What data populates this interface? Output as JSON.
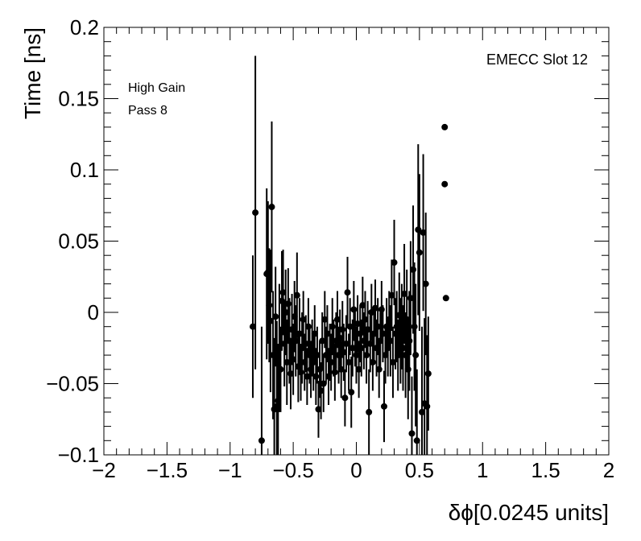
{
  "chart_data": {
    "type": "scatter",
    "xlabel": "δϕ[0.0245 units]",
    "ylabel": "Time [ns]",
    "xlim": [
      -2,
      2
    ],
    "ylim": [
      -0.1,
      0.2
    ],
    "x_ticks": [
      -2,
      -1.5,
      -1,
      -0.5,
      0,
      0.5,
      1,
      1.5,
      2
    ],
    "x_tick_labels": [
      "−2",
      "−1.5",
      "−1",
      "−0.5",
      "0",
      "0.5",
      "1",
      "1.5",
      "2"
    ],
    "y_ticks": [
      -0.1,
      -0.05,
      0,
      0.05,
      0.1,
      0.15,
      0.2
    ],
    "y_tick_labels": [
      "−0.1",
      "−0.05",
      "0",
      "0.05",
      "0.1",
      "0.15",
      "0.2"
    ],
    "annotations": {
      "top_right": "EMECC Slot 12",
      "top_left_line1": "High Gain",
      "top_left_line2": "Pass 8"
    },
    "grid": false,
    "series": [
      {
        "points": [
          [
            -0.82,
            -0.01,
            0.05
          ],
          [
            -0.8,
            0.07,
            0.11
          ],
          [
            -0.75,
            -0.09,
            0.08
          ],
          [
            -0.71,
            0.027,
            0.06
          ],
          [
            -0.7,
            0.028,
            0.05
          ],
          [
            -0.69,
            0.005,
            0.04
          ],
          [
            -0.68,
            -0.006,
            0.05
          ],
          [
            -0.67,
            0.074,
            0.06
          ],
          [
            -0.66,
            -0.03,
            0.045
          ],
          [
            -0.65,
            -0.068,
            0.05
          ],
          [
            -0.64,
            -0.003,
            0.035
          ],
          [
            -0.63,
            -0.066,
            0.06
          ],
          [
            -0.62,
            -0.062,
            0.04
          ],
          [
            -0.61,
            -0.025,
            0.045
          ],
          [
            -0.6,
            -0.04,
            0.03
          ],
          [
            -0.59,
            0.008,
            0.035
          ],
          [
            -0.58,
            0.014,
            0.03
          ],
          [
            -0.57,
            -0.022,
            0.03
          ],
          [
            -0.56,
            0.0,
            0.03
          ],
          [
            -0.55,
            -0.035,
            0.03
          ],
          [
            -0.54,
            0.006,
            0.025
          ],
          [
            -0.53,
            -0.02,
            0.03
          ],
          [
            -0.52,
            -0.043,
            0.025
          ],
          [
            -0.51,
            -0.012,
            0.025
          ],
          [
            -0.5,
            -0.033,
            0.025
          ],
          [
            -0.49,
            -0.003,
            0.025
          ],
          [
            -0.48,
            -0.02,
            0.025
          ],
          [
            -0.47,
            0.012,
            0.03
          ],
          [
            -0.46,
            -0.038,
            0.025
          ],
          [
            -0.45,
            -0.015,
            0.025
          ],
          [
            -0.44,
            -0.042,
            0.02
          ],
          [
            -0.43,
            -0.025,
            0.025
          ],
          [
            -0.42,
            -0.005,
            0.02
          ],
          [
            -0.41,
            -0.035,
            0.02
          ],
          [
            -0.4,
            -0.022,
            0.02
          ],
          [
            -0.39,
            -0.045,
            0.02
          ],
          [
            -0.38,
            -0.01,
            0.02
          ],
          [
            -0.37,
            -0.03,
            0.02
          ],
          [
            -0.36,
            -0.04,
            0.02
          ],
          [
            -0.35,
            -0.025,
            0.02
          ],
          [
            -0.34,
            -0.035,
            0.02
          ],
          [
            -0.33,
            -0.015,
            0.02
          ],
          [
            -0.32,
            -0.045,
            0.02
          ],
          [
            -0.31,
            -0.03,
            0.02
          ],
          [
            -0.3,
            -0.068,
            0.02
          ],
          [
            -0.29,
            -0.04,
            0.02
          ],
          [
            -0.28,
            -0.055,
            0.02
          ],
          [
            -0.27,
            -0.02,
            0.02
          ],
          [
            -0.26,
            -0.05,
            0.02
          ],
          [
            -0.25,
            -0.005,
            0.02
          ],
          [
            -0.24,
            -0.03,
            0.02
          ],
          [
            -0.23,
            -0.015,
            0.02
          ],
          [
            -0.22,
            -0.045,
            0.02
          ],
          [
            -0.21,
            -0.028,
            0.02
          ],
          [
            -0.2,
            -0.035,
            0.02
          ],
          [
            -0.19,
            -0.01,
            0.02
          ],
          [
            -0.18,
            -0.025,
            0.02
          ],
          [
            -0.17,
            -0.042,
            0.02
          ],
          [
            -0.16,
            -0.02,
            0.02
          ],
          [
            -0.15,
            -0.005,
            0.02
          ],
          [
            -0.14,
            -0.03,
            0.02
          ],
          [
            -0.13,
            -0.018,
            0.02
          ],
          [
            -0.12,
            -0.04,
            0.02
          ],
          [
            -0.11,
            -0.012,
            0.02
          ],
          [
            -0.1,
            -0.028,
            0.02
          ],
          [
            -0.09,
            -0.06,
            0.02
          ],
          [
            -0.08,
            -0.022,
            0.02
          ],
          [
            -0.07,
            0.014,
            0.025
          ],
          [
            -0.06,
            -0.035,
            0.02
          ],
          [
            -0.05,
            -0.01,
            0.02
          ],
          [
            -0.04,
            -0.056,
            0.025
          ],
          [
            -0.03,
            -0.025,
            0.02
          ],
          [
            -0.02,
            0.002,
            0.02
          ],
          [
            -0.01,
            -0.018,
            0.02
          ],
          [
            0.0,
            -0.03,
            0.02
          ],
          [
            0.01,
            -0.008,
            0.02
          ],
          [
            0.02,
            -0.04,
            0.02
          ],
          [
            0.03,
            -0.015,
            0.02
          ],
          [
            0.04,
            -0.025,
            0.02
          ],
          [
            0.05,
            0.005,
            0.02
          ],
          [
            0.06,
            -0.02,
            0.02
          ],
          [
            0.07,
            -0.005,
            0.02
          ],
          [
            0.08,
            -0.03,
            0.02
          ],
          [
            0.09,
            -0.012,
            0.02
          ],
          [
            0.1,
            -0.07,
            0.03
          ],
          [
            0.11,
            -0.022,
            0.02
          ],
          [
            0.12,
            0.0,
            0.02
          ],
          [
            0.13,
            -0.035,
            0.02
          ],
          [
            0.14,
            -0.015,
            0.02
          ],
          [
            0.15,
            0.003,
            0.02
          ],
          [
            0.16,
            -0.025,
            0.02
          ],
          [
            0.17,
            -0.01,
            0.02
          ],
          [
            0.18,
            -0.04,
            0.02
          ],
          [
            0.19,
            -0.02,
            0.02
          ],
          [
            0.2,
            0.002,
            0.02
          ],
          [
            0.21,
            -0.015,
            0.02
          ],
          [
            0.22,
            -0.066,
            0.025
          ],
          [
            0.23,
            -0.03,
            0.02
          ],
          [
            0.24,
            -0.01,
            0.02
          ],
          [
            0.25,
            -0.025,
            0.02
          ],
          [
            0.26,
            -0.005,
            0.02
          ],
          [
            0.27,
            -0.02,
            0.025
          ],
          [
            0.28,
            0.012,
            0.025
          ],
          [
            0.29,
            -0.035,
            0.025
          ],
          [
            0.3,
            0.035,
            0.03
          ],
          [
            0.31,
            -0.015,
            0.025
          ],
          [
            0.32,
            -0.01,
            0.025
          ],
          [
            0.33,
            -0.03,
            0.025
          ],
          [
            0.34,
            -0.002,
            0.03
          ],
          [
            0.35,
            -0.02,
            0.03
          ],
          [
            0.36,
            -0.01,
            0.03
          ],
          [
            0.37,
            -0.025,
            0.03
          ],
          [
            0.38,
            0.013,
            0.035
          ],
          [
            0.39,
            -0.03,
            0.03
          ],
          [
            0.4,
            -0.005,
            0.035
          ],
          [
            0.41,
            -0.04,
            0.035
          ],
          [
            0.42,
            -0.02,
            0.035
          ],
          [
            0.43,
            0.01,
            0.04
          ],
          [
            0.44,
            -0.085,
            0.04
          ],
          [
            0.45,
            0.03,
            0.045
          ],
          [
            0.46,
            -0.01,
            0.045
          ],
          [
            0.47,
            -0.03,
            0.05
          ],
          [
            0.48,
            -0.09,
            0.05
          ],
          [
            0.49,
            0.058,
            0.06
          ],
          [
            0.5,
            0.042,
            0.055
          ],
          [
            0.52,
            -0.07,
            0.06
          ],
          [
            0.53,
            0.056,
            0.055
          ],
          [
            0.54,
            -0.064,
            0.06
          ],
          [
            0.55,
            0.02,
            0.05
          ],
          [
            0.57,
            -0.043,
            0.04
          ],
          [
            0.56,
            -0.066,
            0.05
          ],
          [
            0.7,
            0.13,
            0.0
          ],
          [
            0.7,
            0.09,
            0.0
          ],
          [
            0.71,
            0.01,
            0.0
          ]
        ]
      }
    ]
  }
}
